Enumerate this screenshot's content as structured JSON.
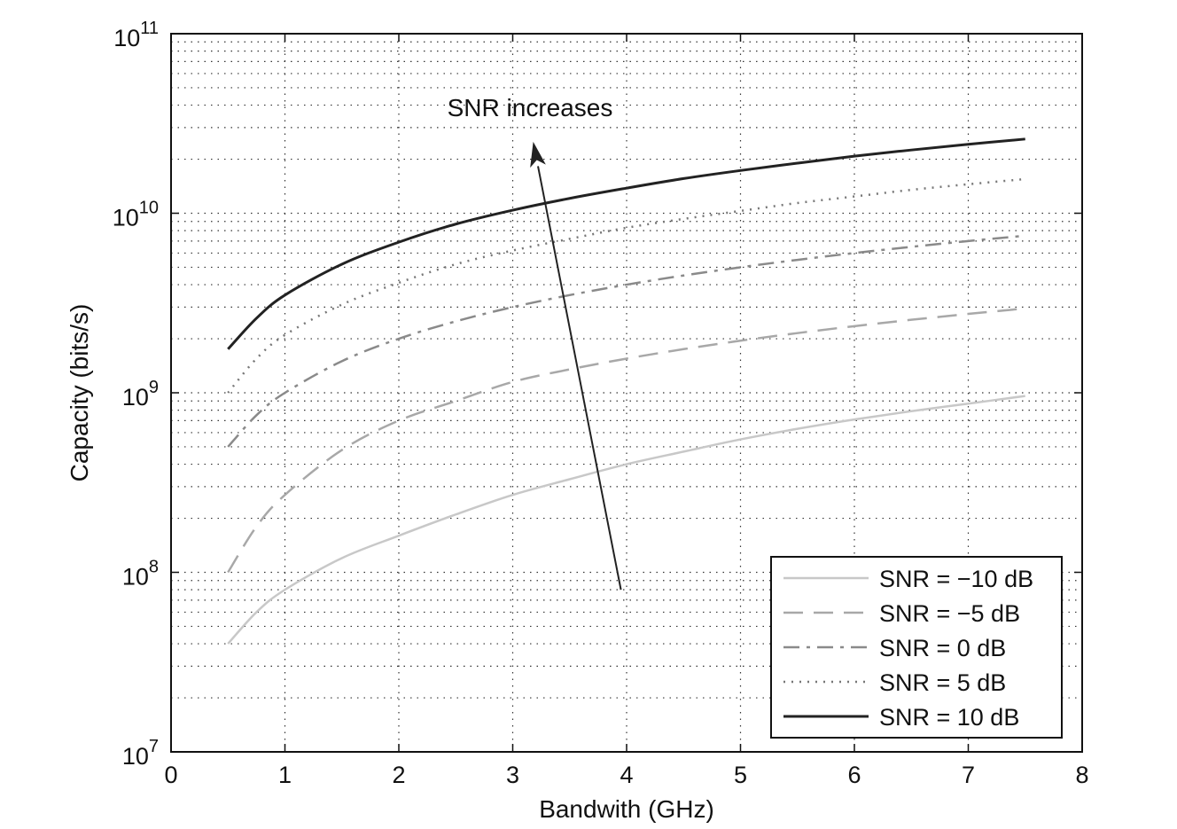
{
  "chart_data": {
    "type": "line",
    "xlabel": "Bandwith (GHz)",
    "ylabel": "Capacity (bits/s)",
    "xlim": [
      0,
      8
    ],
    "ylim": [
      10000000,
      100000000000
    ],
    "yscale": "log",
    "x_ticks": [
      "0",
      "1",
      "2",
      "3",
      "4",
      "5",
      "6",
      "7",
      "8"
    ],
    "y_ticks": [
      {
        "value": 10000000,
        "base": "10",
        "exp": "7"
      },
      {
        "value": 100000000,
        "base": "10",
        "exp": "8"
      },
      {
        "value": 1000000000,
        "base": "10",
        "exp": "9"
      },
      {
        "value": 10000000000,
        "base": "10",
        "exp": "10"
      },
      {
        "value": 100000000000,
        "base": "10",
        "exp": "11"
      }
    ],
    "grid": true,
    "legend_position": "bottom-right",
    "annotation": {
      "text": "SNR increases",
      "arrow_from": [
        3.95,
        80000000
      ],
      "arrow_to": [
        3.18,
        25000000000
      ]
    },
    "series": [
      {
        "name": "SNR = −10 dB",
        "snr_db": -10,
        "color": "#c8c8c8",
        "dash": "",
        "width": 2.5,
        "x": [
          0.5,
          0.75,
          1,
          1.5,
          2,
          2.5,
          3,
          3.5,
          4,
          4.5,
          5,
          5.5,
          6,
          6.5,
          7,
          7.5
        ],
        "values": [
          40000000,
          60000000,
          80000000,
          120000000,
          160000000,
          210000000,
          270000000,
          330000000,
          400000000,
          470000000,
          550000000,
          630000000,
          710000000,
          790000000,
          870000000,
          960000000
        ]
      },
      {
        "name": "SNR = −5 dB",
        "snr_db": -5,
        "color": "#a8a8a8",
        "dash": "22,12",
        "width": 2.5,
        "x": [
          0.5,
          0.75,
          1,
          1.5,
          2,
          2.5,
          3,
          3.5,
          4,
          4.5,
          5,
          5.5,
          6,
          6.5,
          7,
          7.5
        ],
        "values": [
          100000000,
          180000000,
          270000000,
          480000000,
          700000000,
          900000000,
          1150000000,
          1350000000,
          1550000000,
          1750000000,
          1950000000,
          2150000000,
          2350000000,
          2550000000,
          2750000000,
          2950000000
        ]
      },
      {
        "name": "SNR = 0 dB",
        "snr_db": 0,
        "color": "#8a8a8a",
        "dash": "18,8,4,8",
        "width": 2.5,
        "x": [
          0.5,
          0.75,
          1,
          1.5,
          2,
          2.5,
          3,
          3.5,
          4,
          4.5,
          5,
          5.5,
          6,
          6.5,
          7,
          7.5
        ],
        "values": [
          500000000,
          750000000,
          1000000000,
          1500000000,
          2000000000,
          2500000000,
          3000000000,
          3500000000,
          4000000000,
          4500000000,
          5000000000,
          5500000000,
          6000000000,
          6500000000,
          7000000000,
          7500000000
        ]
      },
      {
        "name": "SNR = 5 dB",
        "snr_db": 5,
        "color": "#777777",
        "dash": "2,7",
        "width": 2.5,
        "x": [
          0.5,
          0.75,
          1,
          1.5,
          2,
          2.5,
          3,
          3.5,
          4,
          4.5,
          5,
          5.5,
          6,
          6.5,
          7,
          7.5
        ],
        "values": [
          1000000000,
          1550000000,
          2100000000,
          3100000000,
          4100000000,
          5200000000,
          6200000000,
          7200000000,
          8300000000,
          9300000000,
          10300000000,
          11400000000,
          12400000000,
          13500000000,
          14500000000,
          15500000000
        ]
      },
      {
        "name": "SNR = 10 dB",
        "snr_db": 10,
        "color": "#222222",
        "dash": "",
        "width": 3,
        "x": [
          0.5,
          0.75,
          1,
          1.5,
          2,
          2.5,
          3,
          3.5,
          4,
          4.5,
          5,
          5.5,
          6,
          6.5,
          7,
          7.5
        ],
        "values": [
          1750000000,
          2600000000,
          3500000000,
          5200000000,
          6900000000,
          8700000000,
          10400000000,
          12100000000,
          13800000000,
          15600000000,
          17300000000,
          19000000000,
          20800000000,
          22500000000,
          24200000000,
          25900000000
        ]
      }
    ]
  }
}
